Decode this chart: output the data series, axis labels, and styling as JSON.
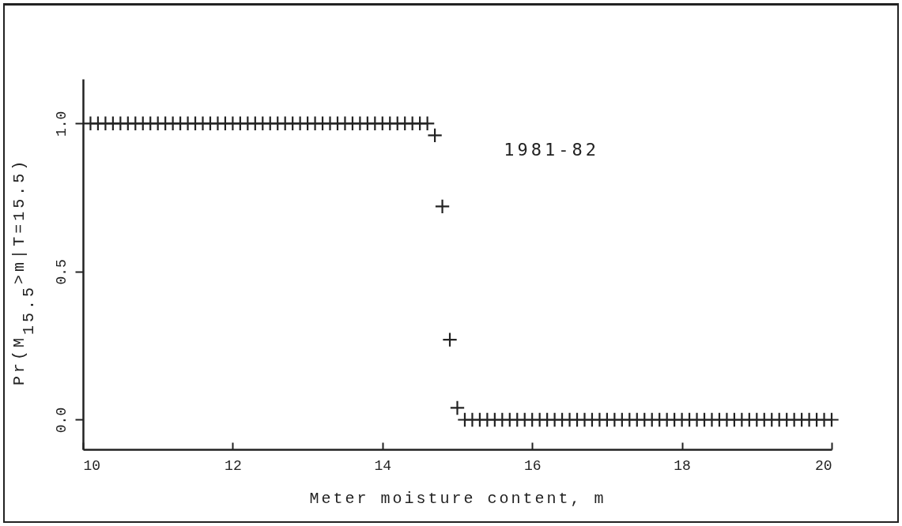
{
  "chart_data": {
    "type": "scatter",
    "xlabel": "Meter moisture content, m",
    "ylabel": "Pr(M$_{15.5}$>m|T=15.5)",
    "annotations": [
      "1981-82"
    ],
    "x": [
      10.1,
      10.2,
      10.3,
      10.4,
      10.5,
      10.6,
      10.7,
      10.8,
      10.9,
      11.0,
      11.1,
      11.2,
      11.3,
      11.4,
      11.5,
      11.6,
      11.7,
      11.8,
      11.9,
      12.0,
      12.1,
      12.2,
      12.3,
      12.4,
      12.5,
      12.6,
      12.7,
      12.8,
      12.9,
      13.0,
      13.1,
      13.2,
      13.3,
      13.4,
      13.5,
      13.6,
      13.7,
      13.8,
      13.9,
      14.0,
      14.1,
      14.2,
      14.3,
      14.4,
      14.5,
      14.6,
      14.7,
      14.8,
      14.9,
      15.0,
      15.1,
      15.2,
      15.3,
      15.4,
      15.5,
      15.6,
      15.7,
      15.8,
      15.9,
      16.0,
      16.1,
      16.2,
      16.3,
      16.4,
      16.5,
      16.6,
      16.7,
      16.8,
      16.9,
      17.0,
      17.1,
      17.2,
      17.3,
      17.4,
      17.5,
      17.6,
      17.7,
      17.8,
      17.9,
      18.0,
      18.1,
      18.2,
      18.3,
      18.4,
      18.5,
      18.6,
      18.7,
      18.8,
      18.9,
      19.0,
      19.1,
      19.2,
      19.3,
      19.4,
      19.5,
      19.6,
      19.7,
      19.8,
      19.9,
      20.0
    ],
    "series": [
      {
        "color": "#222222",
        "values": [
          1,
          1,
          1,
          1,
          1,
          1,
          1,
          1,
          1,
          1,
          1,
          1,
          1,
          1,
          1,
          1,
          1,
          1,
          1,
          1,
          1,
          1,
          1,
          1,
          1,
          1,
          1,
          1,
          1,
          1,
          1,
          1,
          1,
          1,
          1,
          1,
          1,
          1,
          1,
          1,
          1,
          1,
          1,
          1,
          1,
          1,
          0.96,
          0.72,
          0.27,
          0.04,
          0,
          0,
          0,
          0,
          0,
          0,
          0,
          0,
          0,
          0,
          0,
          0,
          0,
          0,
          0,
          0,
          0,
          0,
          0,
          0,
          0,
          0,
          0,
          0,
          0,
          0,
          0,
          0,
          0,
          0,
          0,
          0,
          0,
          0,
          0,
          0,
          0,
          0,
          0,
          0,
          0,
          0,
          0,
          0,
          0,
          0,
          0,
          0,
          0,
          0
        ]
      }
    ],
    "xlim": [
      10,
      20
    ],
    "ylim": [
      -0.1,
      1.15
    ],
    "xticks": [
      10,
      12,
      14,
      16,
      18,
      20
    ],
    "yticks": [
      {
        "value": 0,
        "label": "0.0"
      },
      {
        "value": 0.5,
        "label": "0.5"
      },
      {
        "value": 1,
        "label": "1.0"
      }
    ],
    "marker": "cross"
  }
}
